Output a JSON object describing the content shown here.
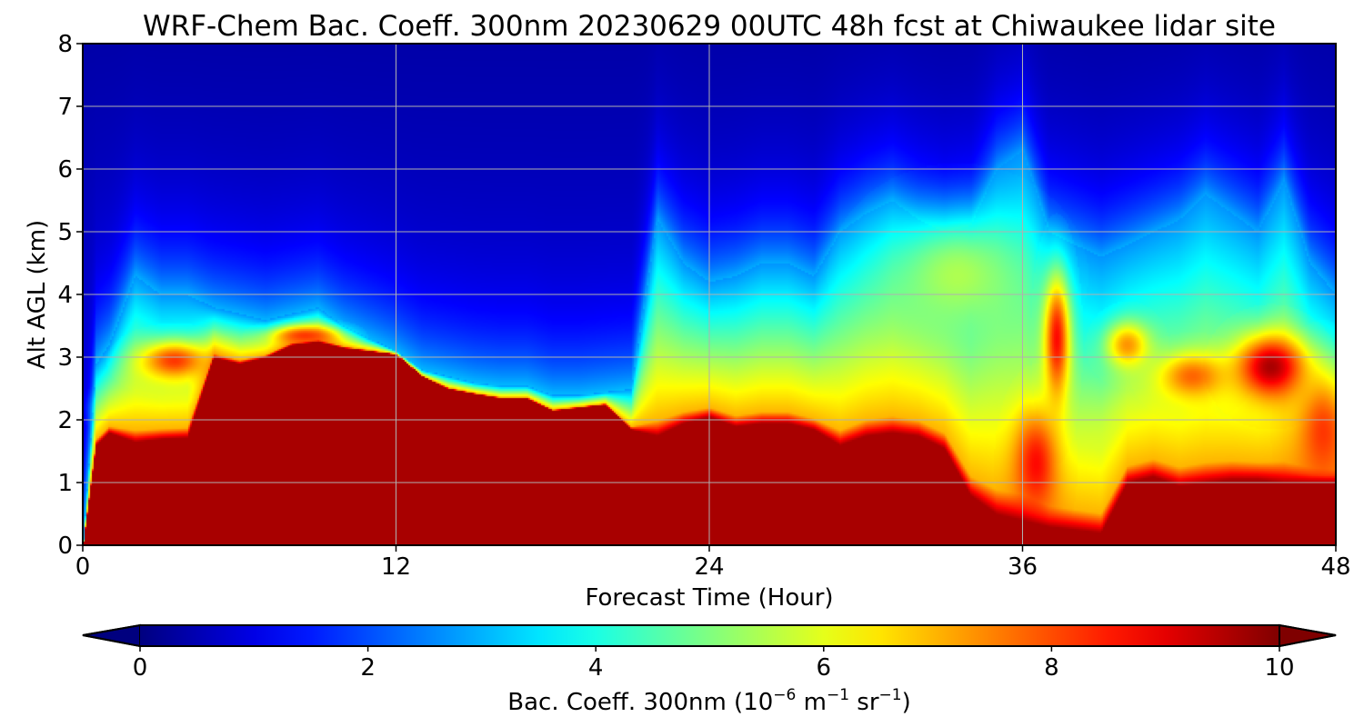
{
  "chart_data": {
    "type": "heatmap",
    "title": "WRF-Chem Bac. Coeff. 300nm  20230629 00UTC 48h fcst at Chiwaukee lidar site",
    "xlabel": "Forecast Time (Hour)",
    "ylabel": "Alt AGL (km)",
    "x_ticks": [
      0,
      12,
      24,
      36,
      48
    ],
    "y_ticks": [
      0,
      1,
      2,
      3,
      4,
      5,
      6,
      7,
      8
    ],
    "xlim": [
      0,
      48
    ],
    "ylim": [
      0,
      8
    ],
    "grid": true,
    "colormap": "jet",
    "colorbar": {
      "label": "Bac. Coeff. 300nm  (10⁻⁶ m⁻¹ sr⁻¹)",
      "label_main": "Bac. Coeff. 300nm  (10",
      "label_exp1": "−6",
      "label_mid": " m",
      "label_exp2": "−1",
      "label_tail": " sr",
      "label_exp3": "−1",
      "label_close": ")",
      "ticks": [
        0,
        2,
        4,
        6,
        8,
        10
      ],
      "range": [
        0,
        10
      ],
      "extend": "both",
      "orientation": "horizontal"
    },
    "x": [
      0,
      0.5,
      1,
      2,
      3,
      4,
      5,
      6,
      7,
      8,
      9,
      10,
      11,
      12,
      13,
      14,
      15,
      16,
      17,
      18,
      19,
      20,
      21,
      22,
      23,
      24,
      25,
      26,
      27,
      28,
      29,
      30,
      31,
      32,
      33,
      34,
      35,
      36,
      37,
      38,
      39,
      40,
      41,
      42,
      43,
      44,
      45,
      46,
      47,
      48
    ],
    "boundary_layer_top_km": [
      0.0,
      1.6,
      1.8,
      1.65,
      1.7,
      1.72,
      3.0,
      2.9,
      3.0,
      3.2,
      3.25,
      3.15,
      3.1,
      3.05,
      2.7,
      2.5,
      2.42,
      2.35,
      2.35,
      2.15,
      2.2,
      2.25,
      1.85,
      1.75,
      1.95,
      2.05,
      1.9,
      1.95,
      1.95,
      1.85,
      1.6,
      1.75,
      1.8,
      1.75,
      1.55,
      0.8,
      0.5,
      0.4,
      0.3,
      0.25,
      0.2,
      1.0,
      1.1,
      0.95,
      1.0,
      1.05,
      1.05,
      1.0,
      1.0,
      1.0
    ],
    "aerosol_layer_top_km": [
      0.0,
      2.9,
      3.2,
      4.3,
      4.0,
      4.0,
      3.8,
      3.7,
      3.6,
      3.7,
      3.8,
      3.5,
      3.3,
      3.1,
      2.8,
      2.7,
      2.6,
      2.55,
      2.55,
      2.4,
      2.4,
      2.45,
      2.5,
      5.2,
      4.5,
      4.2,
      4.3,
      4.5,
      4.5,
      4.3,
      5.0,
      5.3,
      5.5,
      5.2,
      5.0,
      5.1,
      6.0,
      6.3,
      5.0,
      4.8,
      4.6,
      4.8,
      5.0,
      5.2,
      5.6,
      5.3,
      5.0,
      5.8,
      4.5,
      4.0
    ],
    "background_value": 1.0,
    "bl_value": 10.0,
    "elevated_features": [
      {
        "x": 1.5,
        "y": 2.2,
        "value": 4.5,
        "sx": 0.9,
        "sy": 0.22
      },
      {
        "x": 3.5,
        "y": 2.95,
        "value": 8.5,
        "sx": 1.3,
        "sy": 0.3
      },
      {
        "x": 8.5,
        "y": 3.35,
        "value": 8.5,
        "sx": 1.2,
        "sy": 0.15
      },
      {
        "x": 33.5,
        "y": 4.3,
        "value": 5.5,
        "sx": 2.5,
        "sy": 0.9
      },
      {
        "x": 37.3,
        "y": 3.3,
        "value": 9.0,
        "sx": 0.5,
        "sy": 1.0
      },
      {
        "x": 36.5,
        "y": 1.3,
        "value": 9.0,
        "sx": 0.8,
        "sy": 0.8
      },
      {
        "x": 40.0,
        "y": 3.2,
        "value": 7.5,
        "sx": 0.8,
        "sy": 0.35
      },
      {
        "x": 42.5,
        "y": 2.7,
        "value": 8.0,
        "sx": 1.2,
        "sy": 0.35
      },
      {
        "x": 45.5,
        "y": 2.85,
        "value": 10.0,
        "sx": 1.3,
        "sy": 0.5
      },
      {
        "x": 47.5,
        "y": 1.8,
        "value": 8.5,
        "sx": 1.0,
        "sy": 0.9
      },
      {
        "x": 41.0,
        "y": 1.6,
        "value": 6.0,
        "sx": 2.5,
        "sy": 0.6
      }
    ]
  }
}
